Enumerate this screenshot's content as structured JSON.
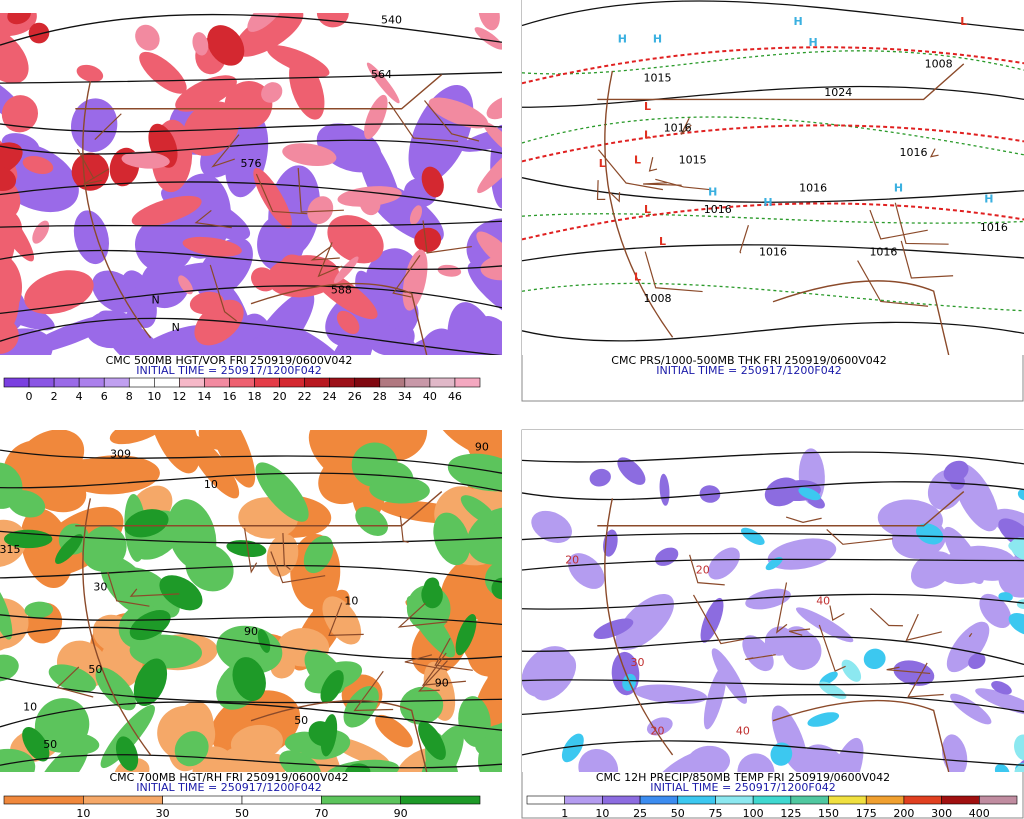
{
  "panels": [
    {
      "caption": "CMC 500MB HGT/VOR FRI 250919/0600V042",
      "init": "INITIAL TIME = 250917/1200F042",
      "colorbar": {
        "labels": [
          0,
          2,
          4,
          6,
          8,
          10,
          12,
          14,
          16,
          18,
          20,
          22,
          24,
          26,
          28,
          34,
          40,
          46
        ],
        "colors": [
          "#7a3fe0",
          "#8a55e4",
          "#9a6ae8",
          "#ab80ec",
          "#c0a0f0",
          "#ffffff",
          "#ffffff",
          "#f6b8c8",
          "#f28aa0",
          "#ee6070",
          "#e43c48",
          "#d42830",
          "#b81820",
          "#9c1018",
          "#800810",
          "#b07880",
          "#c898a8",
          "#e0b8c8",
          "#f4a8c0"
        ]
      },
      "map_labels": [
        "540",
        "564",
        "576",
        "588",
        "N",
        "N"
      ]
    },
    {
      "caption": "CMC PRS/1000-500MB THK FRI 250919/0600V042",
      "init": "INITIAL TIME = 250917/1200F042",
      "map_labels": [
        "H",
        "H",
        "H",
        "H",
        "H",
        "H",
        "H",
        "H",
        "L",
        "L",
        "L",
        "L",
        "L",
        "L",
        "L",
        "L",
        "1015",
        "1016",
        "1015",
        "1024",
        "1016",
        "1016",
        "1016",
        "1016",
        "1016",
        "1008",
        "1008",
        "1016"
      ]
    },
    {
      "caption": "CMC 700MB HGT/RH FRI 250919/0600V042",
      "init": "INITIAL TIME = 250917/1200F042",
      "colorbar": {
        "labels": [
          10,
          30,
          50,
          70,
          90
        ],
        "colors": [
          "#f0883c",
          "#f5a868",
          "#ffffff",
          "#ffffff",
          "#5cc45c",
          "#1e9a28"
        ]
      },
      "map_labels": [
        "309",
        "315",
        "10",
        "10",
        "50",
        "50",
        "90",
        "90",
        "30",
        "10",
        "50",
        "90"
      ]
    },
    {
      "caption": "CMC 12H PRECIP/850MB TEMP FRI 250919/0600V042",
      "init": "INITIAL TIME = 250917/1200F042",
      "colorbar": {
        "labels": [
          1,
          10,
          25,
          50,
          75,
          100,
          125,
          150,
          175,
          200,
          300,
          400
        ],
        "colors": [
          "#ffffff",
          "#b49cf0",
          "#8c6ce0",
          "#3c8cf0",
          "#3cc8f0",
          "#8ce8f0",
          "#40d8d0",
          "#50c8a0",
          "#f0e040",
          "#f0a030",
          "#e04020",
          "#a01010",
          "#c08ca0"
        ]
      },
      "map_labels": [
        "20",
        "20",
        "40",
        "40",
        "20",
        "30"
      ]
    }
  ]
}
